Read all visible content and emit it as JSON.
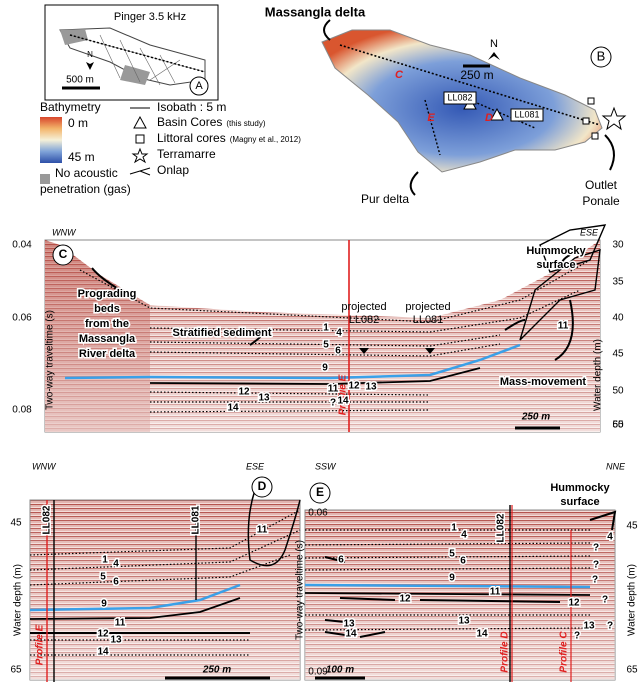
{
  "panel_a": {
    "title": "Pinger 3.5 kHz",
    "north": "N",
    "scale": "500 m",
    "label": "A"
  },
  "panel_b": {
    "label": "B",
    "north": "N",
    "scale": "250 m",
    "places": [
      "Massangla delta",
      "Pur delta",
      [
        "Outlet",
        "Ponale"
      ]
    ],
    "profiles": [
      "C",
      "E",
      "D"
    ],
    "cores": [
      "LL082",
      "LL081"
    ]
  },
  "legend": {
    "bathymetry": {
      "title": "Bathymetry",
      "top": "0 m",
      "bottom": "45 m"
    },
    "gas": [
      "No acoustic",
      "penetration (gas)"
    ],
    "isobath": "Isobath : 5 m",
    "basin_cores": {
      "text": "Basin Cores",
      "note": "(this study)"
    },
    "littoral_cores": {
      "text": "Littoral cores",
      "note": "(Magny et al., 2012)"
    },
    "terramarre": "Terramarre",
    "onlap": "Onlap"
  },
  "panel_c": {
    "label": "C",
    "left_end": "WNW",
    "right_end": "ESE",
    "left_ticks": [
      "0.04",
      "0.06",
      "0.08"
    ],
    "left_axis": "Two-way traveltime (s)",
    "right_ticks": [
      "30",
      "35",
      "40",
      "45",
      "50",
      "55",
      "60"
    ],
    "right_axis": "Water depth (m)",
    "hummocky": [
      "Hummocky",
      "surface"
    ],
    "prograding": [
      "Prograding",
      "beds",
      "from the",
      "Massangla",
      "River delta"
    ],
    "stratified": "Stratified sediment",
    "mass_movement": "Mass-movement",
    "projected": [
      [
        "projected",
        "LL082"
      ],
      [
        "projected",
        "LL081"
      ]
    ],
    "profile_line": "Profile E",
    "scale": "250 m",
    "horizons": [
      "1",
      "4",
      "5",
      "6",
      "9",
      "11",
      "12",
      "13",
      "14",
      "?",
      "12",
      "13",
      "14",
      "11"
    ]
  },
  "panel_d": {
    "label": "D",
    "left_end": "WNW",
    "right_end": "ESE",
    "ticks": [
      "45",
      "65"
    ],
    "axis": "Water depth (m)",
    "cores": [
      "LL082",
      "LL081"
    ],
    "profile_line": "Profile E",
    "scale": "250 m",
    "horizons": [
      "1",
      "4",
      "5",
      "6",
      "9",
      "11",
      "12",
      "13",
      "14",
      "11"
    ]
  },
  "panel_e": {
    "label": "E",
    "left_end": "SSW",
    "right_end": "NNE",
    "left_ticks": [
      "0.06",
      "0.09"
    ],
    "left_axis": "Two-way traveltime (s)",
    "right_ticks": [
      "45",
      "65"
    ],
    "right_axis": "Water depth (m)",
    "core": "LL082",
    "profile_lines": [
      "Profile D",
      "Profile C"
    ],
    "hummocky": [
      "Hummocky",
      "surface"
    ],
    "scale": "100 m",
    "horizons": [
      "1",
      "4",
      "5",
      "6",
      "6",
      "9",
      "11",
      "12",
      "12",
      "13",
      "13",
      "13",
      "14",
      "14",
      "4",
      "?",
      "?",
      "?",
      "?",
      "?",
      "?"
    ]
  }
}
